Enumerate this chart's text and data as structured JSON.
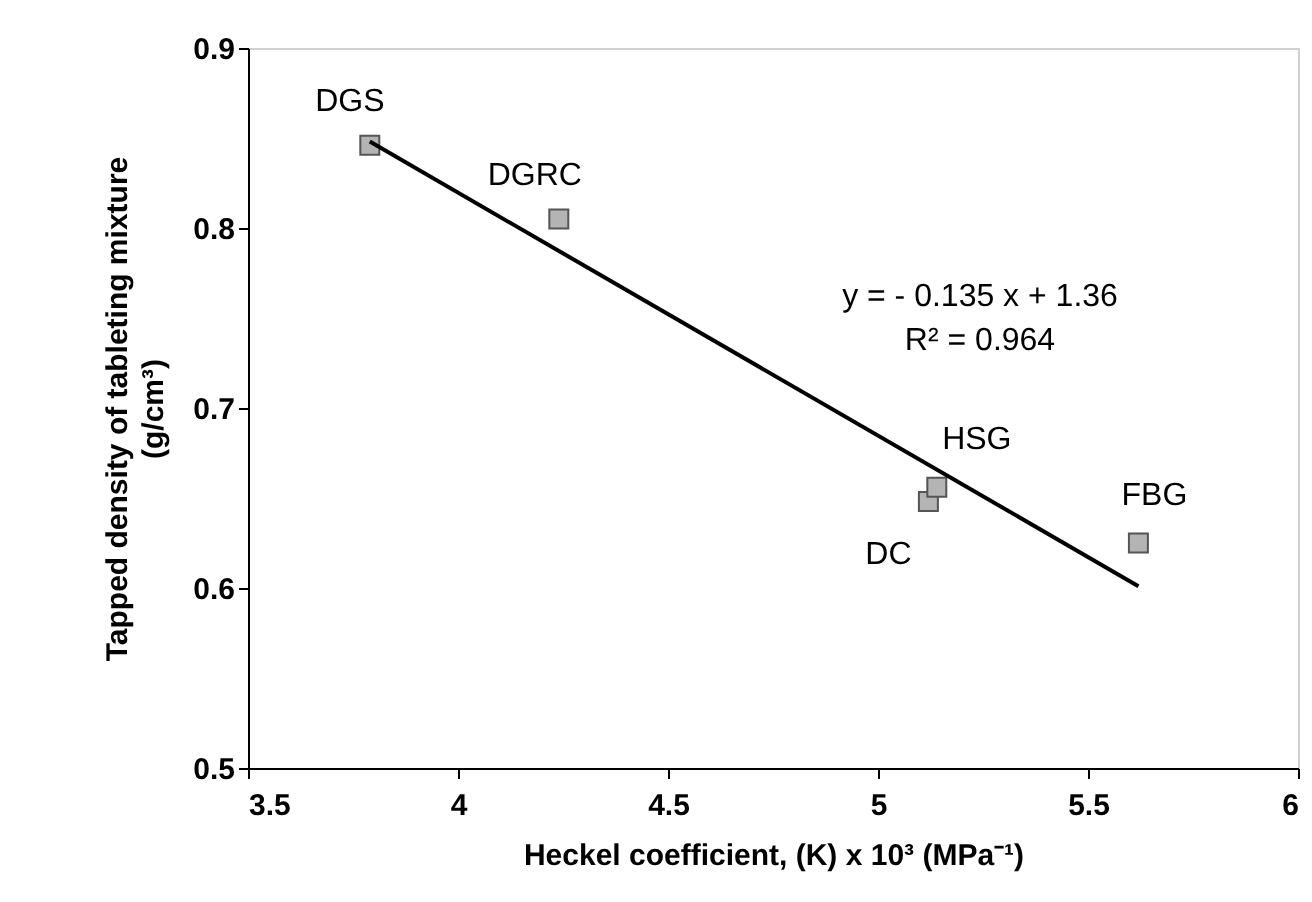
{
  "chart_data": {
    "type": "scatter",
    "xlabel": "Heckel coefficient, (K) x 10³ (MPa⁻¹)",
    "ylabel": "Tapped density of tableting mixture (g/cm³)",
    "x": [
      3.79,
      4.24,
      5.12,
      5.14,
      5.62
    ],
    "series": [
      {
        "color": "#b4b4b4",
        "marker": "square",
        "values": [
          0.846,
          0.805,
          0.648,
          0.656,
          0.625
        ]
      },
      {
        "type": "line",
        "color": "#000000",
        "marker": "none",
        "x": [
          3.79,
          5.62
        ],
        "values": [
          0.848,
          0.601
        ]
      }
    ],
    "grid": false,
    "xlim": [
      3.5,
      6
    ],
    "xticks": [
      3.5,
      4,
      4.5,
      5,
      5.5,
      6
    ],
    "ylim": [
      0.5,
      0.9
    ],
    "yticks": [
      0.5,
      0.6,
      0.7,
      0.8,
      0.9
    ],
    "annotations": [
      "y = - 0.135 x + 1.36",
      "R² = 0.964",
      {
        "text": "DGS",
        "x": 3.79,
        "y": 0.846
      },
      {
        "text": "DGRC",
        "x": 4.24,
        "y": 0.805
      },
      {
        "text": "DC",
        "x": 5.12,
        "y": 0.648
      },
      {
        "text": "HSG",
        "x": 5.14,
        "y": 0.656
      },
      {
        "text": "FBG",
        "x": 5.62,
        "y": 0.625
      }
    ]
  }
}
